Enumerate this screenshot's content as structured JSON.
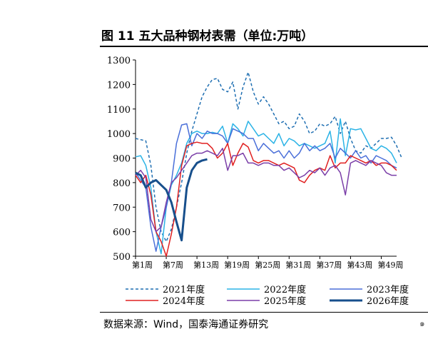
{
  "figure": {
    "title": "图 11 五大品种钢材表需（单位:万吨）",
    "source": "数据来源：Wind，国泰海通证券研究",
    "corner": "๑"
  },
  "chart_data": {
    "type": "line",
    "ylim": [
      500,
      1300
    ],
    "yticks": [
      500,
      600,
      700,
      800,
      900,
      1000,
      1100,
      1200,
      1300
    ],
    "xlim": [
      1,
      52
    ],
    "xticks": [
      {
        "week": 1,
        "label": "第1周"
      },
      {
        "week": 7,
        "label": "第7周"
      },
      {
        "week": 13,
        "label": "第13周"
      },
      {
        "week": 19,
        "label": "第19周"
      },
      {
        "week": 25,
        "label": "第25周"
      },
      {
        "week": 31,
        "label": "第31周"
      },
      {
        "week": 37,
        "label": "第37周"
      },
      {
        "week": 43,
        "label": "第43周"
      },
      {
        "week": 49,
        "label": "第49周"
      }
    ],
    "grid": false,
    "legend_placement": "bottom",
    "series": [
      {
        "name": "2021年度",
        "color": "#1f6fb2",
        "dash": "4,3",
        "width": 1.5,
        "values": [
          980,
          975,
          970,
          870,
          700,
          600,
          560,
          610,
          700,
          800,
          920,
          1010,
          1080,
          1150,
          1190,
          1220,
          1225,
          1180,
          1170,
          1210,
          1100,
          1190,
          1250,
          1170,
          1120,
          1150,
          1120,
          1080,
          1040,
          1050,
          1020,
          1030,
          1080,
          1050,
          1000,
          1010,
          1040,
          1030,
          1040,
          1070,
          1000,
          1050,
          980,
          930,
          920,
          950,
          940,
          960,
          980,
          980,
          985,
          950,
          900
        ]
      },
      {
        "name": "2022年度",
        "color": "#2bb3e6",
        "dash": "",
        "width": 1.5,
        "values": [
          905,
          910,
          870,
          780,
          600,
          510,
          700,
          790,
          830,
          880,
          960,
          1000,
          1010,
          1000,
          1000,
          1005,
          1000,
          1030,
          960,
          1040,
          1020,
          990,
          1050,
          1020,
          990,
          1000,
          980,
          960,
          1000,
          950,
          980,
          970,
          950,
          960,
          950,
          940,
          950,
          960,
          1010,
          880,
          1060,
          910,
          1020,
          1015,
          1020,
          980,
          940,
          930,
          950,
          940,
          920,
          880
        ]
      },
      {
        "name": "2023年度",
        "color": "#4a6fd9",
        "dash": "",
        "width": 1.5,
        "values": [
          840,
          810,
          780,
          620,
          520,
          620,
          700,
          800,
          960,
          1035,
          1040,
          950,
          1000,
          980,
          1010,
          1000,
          1000,
          990,
          960,
          1020,
          1010,
          1000,
          980,
          980,
          930,
          960,
          940,
          920,
          930,
          900,
          930,
          900,
          920,
          960,
          930,
          950,
          930,
          940,
          960,
          900,
          940,
          920,
          900,
          930,
          900,
          910,
          880,
          910,
          900,
          890,
          870,
          860
        ]
      },
      {
        "name": "2024年度",
        "color": "#e02020",
        "dash": "",
        "width": 1.5,
        "values": [
          830,
          800,
          830,
          750,
          600,
          560,
          500,
          590,
          700,
          870,
          950,
          960,
          965,
          960,
          960,
          940,
          900,
          920,
          960,
          870,
          920,
          960,
          945,
          890,
          880,
          890,
          890,
          880,
          870,
          880,
          870,
          860,
          810,
          800,
          830,
          850,
          860,
          850,
          910,
          860,
          880,
          880,
          910,
          900,
          890,
          880,
          890,
          870,
          880,
          880,
          870,
          850
        ]
      },
      {
        "name": "2025年度",
        "color": "#7b3fa8",
        "dash": "",
        "width": 1.5,
        "values": [
          830,
          850,
          820,
          650,
          600,
          620,
          720,
          800,
          820,
          850,
          880,
          910,
          920,
          920,
          930,
          920,
          910,
          940,
          850,
          910,
          910,
          920,
          880,
          880,
          870,
          880,
          880,
          870,
          870,
          850,
          860,
          840,
          820,
          830,
          850,
          840,
          860,
          830,
          860,
          870,
          840,
          750,
          880,
          890,
          880,
          870,
          890,
          880,
          870,
          840,
          830,
          830
        ]
      },
      {
        "name": "2026年度",
        "color": "#174f8c",
        "dash": "",
        "width": 3,
        "values": [
          840,
          830,
          780,
          800,
          810,
          790,
          770,
          720,
          640,
          565,
          780,
          850,
          880,
          890,
          895
        ]
      }
    ]
  }
}
